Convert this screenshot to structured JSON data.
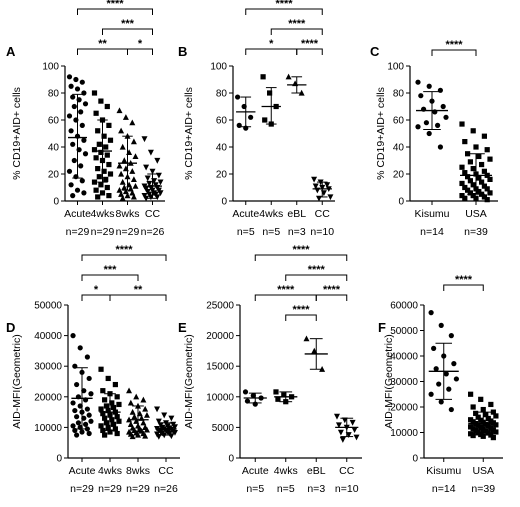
{
  "chart_data": [
    {
      "type": "scatter",
      "panel_label": "A",
      "ylabel": "% CD19+AID+ cells",
      "ylim": [
        0,
        100
      ],
      "yticks": [
        0,
        20,
        40,
        60,
        80,
        100
      ],
      "categories": [
        "Acute",
        "4wks",
        "8wks",
        "CC"
      ],
      "n_labels": [
        "n=29",
        "n=29",
        "n=29",
        "n=26"
      ],
      "marker": [
        "circle",
        "square",
        "triangle-up",
        "triangle-down"
      ],
      "summary": [
        {
          "mean": 47,
          "sd_low": 17,
          "sd_high": 79
        },
        {
          "mean": 37,
          "sd_low": 14,
          "sd_high": 60
        },
        {
          "mean": 28,
          "sd_low": 8,
          "sd_high": 48
        },
        {
          "mean": 11,
          "sd_low": 2,
          "sd_high": 20
        }
      ],
      "points": [
        [
          92,
          90,
          88,
          85,
          83,
          80,
          77,
          75,
          72,
          70,
          66,
          63,
          60,
          56,
          52,
          48,
          45,
          42,
          38,
          35,
          30,
          26,
          22,
          18,
          15,
          12,
          8,
          6,
          4
        ],
        [
          80,
          74,
          70,
          65,
          60,
          56,
          52,
          48,
          45,
          42,
          40,
          38,
          36,
          34,
          32,
          30,
          27,
          24,
          22,
          20,
          18,
          16,
          14,
          12,
          10,
          8,
          6,
          4,
          3
        ],
        [
          67,
          62,
          58,
          52,
          48,
          44,
          40,
          36,
          33,
          30,
          28,
          26,
          24,
          22,
          20,
          18,
          16,
          14,
          12,
          11,
          10,
          9,
          8,
          7,
          6,
          5,
          4,
          3,
          2
        ],
        [
          46,
          36,
          30,
          25,
          22,
          19,
          17,
          15,
          14,
          13,
          12,
          11,
          10,
          10,
          9,
          8,
          8,
          7,
          6,
          6,
          5,
          5,
          4,
          3,
          3,
          2
        ]
      ],
      "brackets": [
        {
          "from": 0,
          "to": 3,
          "label": "****",
          "level": 3
        },
        {
          "from": 1,
          "to": 3,
          "label": "***",
          "level": 2
        },
        {
          "from": 0,
          "to": 2,
          "label": "**",
          "level": 1
        },
        {
          "from": 2,
          "to": 3,
          "label": "*",
          "level": 1
        }
      ]
    },
    {
      "type": "scatter",
      "panel_label": "B",
      "ylabel": "% CD19+AID+ cells",
      "ylim": [
        0,
        100
      ],
      "yticks": [
        0,
        20,
        40,
        60,
        80,
        100
      ],
      "categories": [
        "Acute",
        "4wks",
        "eBL",
        "CC"
      ],
      "n_labels": [
        "n=5",
        "n=5",
        "n=3",
        "n=10"
      ],
      "marker": [
        "circle",
        "square",
        "triangle-up",
        "triangle-down"
      ],
      "summary": [
        {
          "mean": 66,
          "sd_low": 55,
          "sd_high": 77
        },
        {
          "mean": 70,
          "sd_low": 57,
          "sd_high": 84
        },
        {
          "mean": 86,
          "sd_low": 80,
          "sd_high": 92
        },
        {
          "mean": 9,
          "sd_low": 3,
          "sd_high": 14
        }
      ],
      "points": [
        [
          77,
          70,
          62,
          56,
          54
        ],
        [
          92,
          80,
          70,
          60,
          57
        ],
        [
          92,
          87,
          80
        ],
        [
          16,
          14,
          12,
          11,
          10,
          9,
          8,
          6,
          3,
          2
        ]
      ],
      "brackets": [
        {
          "from": 0,
          "to": 3,
          "label": "****",
          "level": 3
        },
        {
          "from": 1,
          "to": 3,
          "label": "****",
          "level": 2
        },
        {
          "from": 0,
          "to": 2,
          "label": "*",
          "level": 1
        },
        {
          "from": 2,
          "to": 3,
          "label": "****",
          "level": 1
        }
      ]
    },
    {
      "type": "scatter",
      "panel_label": "C",
      "ylabel": "% CD19+AID+ cells",
      "ylim": [
        0,
        100
      ],
      "yticks": [
        0,
        20,
        40,
        60,
        80,
        100
      ],
      "categories": [
        "Kisumu",
        "USA"
      ],
      "n_labels": [
        "n=14",
        "n=39"
      ],
      "marker": [
        "circle",
        "square"
      ],
      "summary": [
        {
          "mean": 67,
          "sd_low": 53,
          "sd_high": 81
        },
        {
          "mean": 19,
          "sd_low": 5,
          "sd_high": 35
        }
      ],
      "points": [
        [
          88,
          85,
          82,
          78,
          74,
          70,
          68,
          66,
          62,
          58,
          56,
          55,
          50,
          40
        ],
        [
          57,
          52,
          48,
          44,
          40,
          38,
          35,
          33,
          31,
          29,
          27,
          25,
          24,
          22,
          21,
          20,
          19,
          18,
          17,
          16,
          15,
          14,
          13,
          12,
          11,
          10,
          9,
          9,
          8,
          7,
          6,
          6,
          5,
          4,
          4,
          3,
          2,
          2,
          1
        ]
      ],
      "brackets": [
        {
          "from": 0,
          "to": 1,
          "label": "****",
          "level": 1
        }
      ]
    },
    {
      "type": "scatter",
      "panel_label": "D",
      "ylabel": "AID-MFI(Geometric)",
      "ylim": [
        0,
        50000
      ],
      "yticks": [
        0,
        10000,
        20000,
        30000,
        40000,
        50000
      ],
      "categories": [
        "Acute",
        "4wks",
        "8wks",
        "CC"
      ],
      "n_labels": [
        "n=29",
        "n=29",
        "n=29",
        "n=26"
      ],
      "marker": [
        "circle",
        "square",
        "triangle-up",
        "triangle-down"
      ],
      "summary": [
        {
          "mean": 19500,
          "sd_low": 9500,
          "sd_high": 29500
        },
        {
          "mean": 15000,
          "sd_low": 9000,
          "sd_high": 21000
        },
        {
          "mean": 12500,
          "sd_low": 8500,
          "sd_high": 17000
        },
        {
          "mean": 9500,
          "sd_low": 7500,
          "sd_high": 11500
        }
      ],
      "points": [
        [
          40000,
          36000,
          33000,
          30000,
          28000,
          26000,
          24000,
          22000,
          21000,
          20000,
          19000,
          18000,
          17000,
          16000,
          15500,
          15000,
          14000,
          13500,
          13000,
          12000,
          11500,
          11000,
          10500,
          10000,
          9500,
          9000,
          8500,
          8000,
          7500
        ],
        [
          29000,
          26000,
          24000,
          22000,
          21000,
          20000,
          19000,
          18000,
          17500,
          17000,
          16500,
          16000,
          15500,
          15000,
          14500,
          14000,
          13500,
          13000,
          12500,
          12000,
          11500,
          11000,
          10500,
          10000,
          9500,
          9000,
          8500,
          8000,
          7500
        ],
        [
          22000,
          20000,
          19000,
          18000,
          17000,
          16000,
          15000,
          14500,
          14000,
          13500,
          13000,
          12500,
          12000,
          11500,
          11000,
          10500,
          10000,
          9800,
          9500,
          9200,
          9000,
          8800,
          8500,
          8200,
          8000,
          7800,
          7500,
          7200,
          7000
        ],
        [
          16000,
          14000,
          13000,
          12000,
          11500,
          11000,
          10800,
          10500,
          10200,
          10000,
          9800,
          9600,
          9500,
          9300,
          9100,
          9000,
          8800,
          8600,
          8500,
          8300,
          8100,
          8000,
          7800,
          7500,
          7200,
          7000
        ]
      ],
      "brackets": [
        {
          "from": 0,
          "to": 3,
          "label": "****",
          "level": 3
        },
        {
          "from": 0,
          "to": 2,
          "label": "***",
          "level": 2
        },
        {
          "from": 0,
          "to": 1,
          "label": "*",
          "level": 1
        },
        {
          "from": 1,
          "to": 3,
          "label": "**",
          "level": 1
        }
      ]
    },
    {
      "type": "scatter",
      "panel_label": "E",
      "ylabel": "AID-MFI(Geometric)",
      "ylim": [
        0,
        25000
      ],
      "yticks": [
        0,
        5000,
        10000,
        15000,
        20000,
        25000
      ],
      "categories": [
        "Acute",
        "4wks",
        "eBL",
        "CC"
      ],
      "n_labels": [
        "n=5",
        "n=5",
        "n=3",
        "n=10"
      ],
      "marker": [
        "circle",
        "square",
        "triangle-up",
        "triangle-down"
      ],
      "summary": [
        {
          "mean": 9800,
          "sd_low": 9000,
          "sd_high": 10600
        },
        {
          "mean": 10000,
          "sd_low": 9200,
          "sd_high": 10800
        },
        {
          "mean": 17000,
          "sd_low": 14500,
          "sd_high": 19500
        },
        {
          "mean": 5000,
          "sd_low": 3500,
          "sd_high": 6500
        }
      ],
      "points": [
        [
          10800,
          10200,
          9800,
          9300,
          8800
        ],
        [
          10800,
          10300,
          10000,
          9600,
          9200
        ],
        [
          19500,
          17500,
          14500
        ],
        [
          6800,
          6200,
          5800,
          5400,
          5000,
          4600,
          4200,
          3800,
          3400,
          3000
        ]
      ],
      "brackets": [
        {
          "from": 0,
          "to": 3,
          "label": "****",
          "level": 3
        },
        {
          "from": 1,
          "to": 3,
          "label": "****",
          "level": 2
        },
        {
          "from": 0,
          "to": 2,
          "label": "****",
          "level": 1
        },
        {
          "from": 2,
          "to": 3,
          "label": "****",
          "level": 1
        },
        {
          "from": 1,
          "to": 2,
          "label": "****",
          "level": 0
        }
      ]
    },
    {
      "type": "scatter",
      "panel_label": "F",
      "ylabel": "AID-MFI(Geometric)",
      "ylim": [
        0,
        60000
      ],
      "yticks": [
        0,
        10000,
        20000,
        30000,
        40000,
        50000,
        60000
      ],
      "categories": [
        "Kisumu",
        "USA"
      ],
      "n_labels": [
        "n=14",
        "n=39"
      ],
      "marker": [
        "circle",
        "square"
      ],
      "summary": [
        {
          "mean": 34000,
          "sd_low": 23000,
          "sd_high": 45000
        },
        {
          "mean": 13500,
          "sd_low": 9000,
          "sd_high": 18000
        }
      ],
      "points": [
        [
          57000,
          52000,
          48000,
          43000,
          40000,
          37000,
          35000,
          33000,
          31000,
          29000,
          27000,
          25000,
          22000,
          19000
        ],
        [
          25000,
          23000,
          21000,
          20000,
          19000,
          18000,
          17500,
          17000,
          16500,
          16000,
          15500,
          15000,
          14800,
          14500,
          14200,
          14000,
          13800,
          13500,
          13200,
          13000,
          12800,
          12500,
          12200,
          12000,
          11800,
          11500,
          11200,
          11000,
          10800,
          10500,
          10200,
          10000,
          9800,
          9500,
          9200,
          9000,
          8800,
          8500,
          8000
        ]
      ],
      "brackets": [
        {
          "from": 0,
          "to": 1,
          "label": "****",
          "level": 1
        }
      ]
    }
  ]
}
